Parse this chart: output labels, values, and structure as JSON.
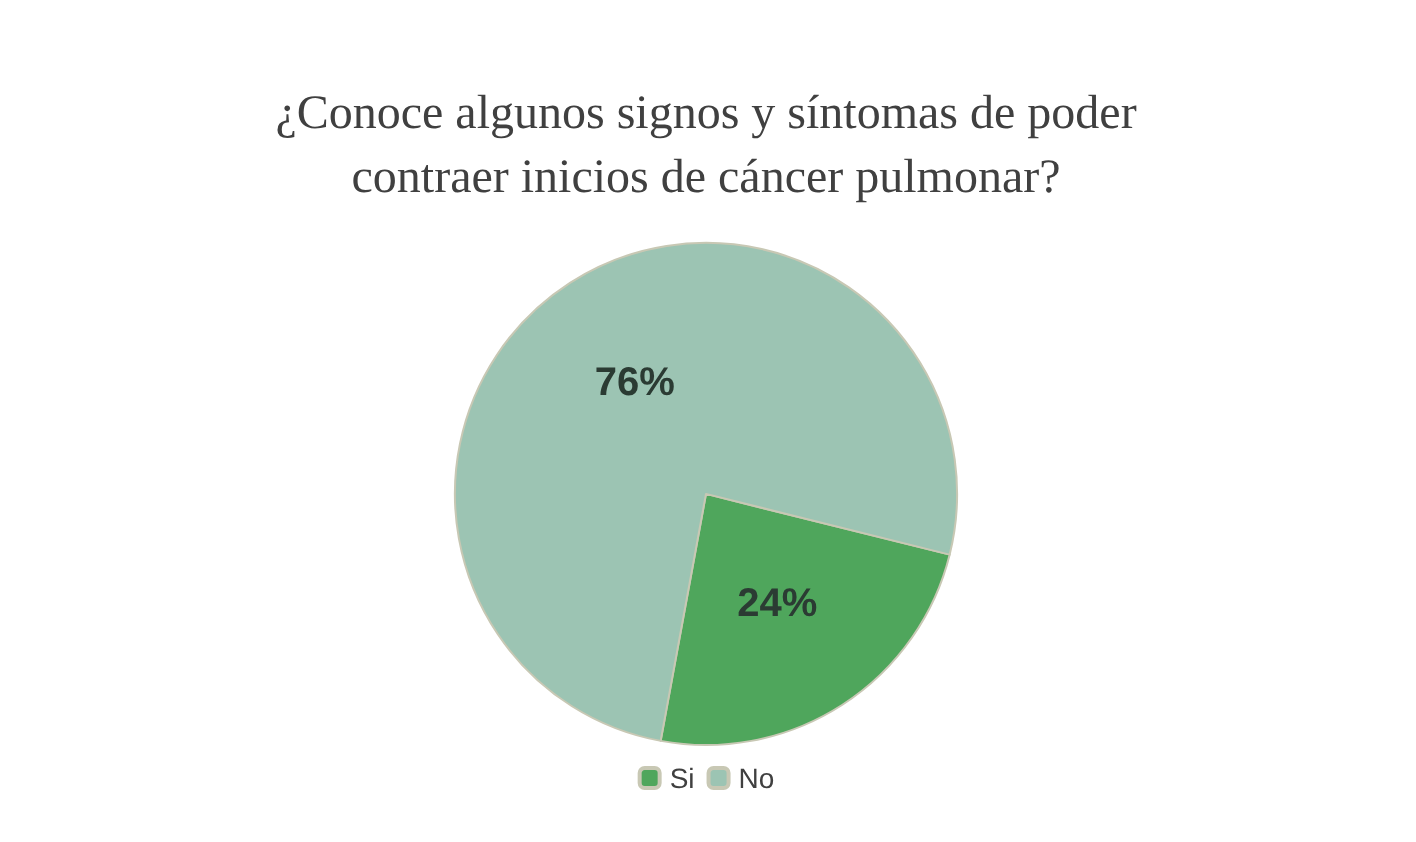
{
  "chart_data": {
    "type": "pie",
    "title": "¿Conoce algunos signos y síntomas de poder\ncontraer inicios de cáncer pulmonar?",
    "categories": [
      "Si",
      "No"
    ],
    "values": [
      24,
      76
    ],
    "colors": [
      "#4fa65c",
      "#9cc4b3"
    ],
    "value_labels": [
      "24%",
      "76%"
    ],
    "legend": "bottom"
  }
}
